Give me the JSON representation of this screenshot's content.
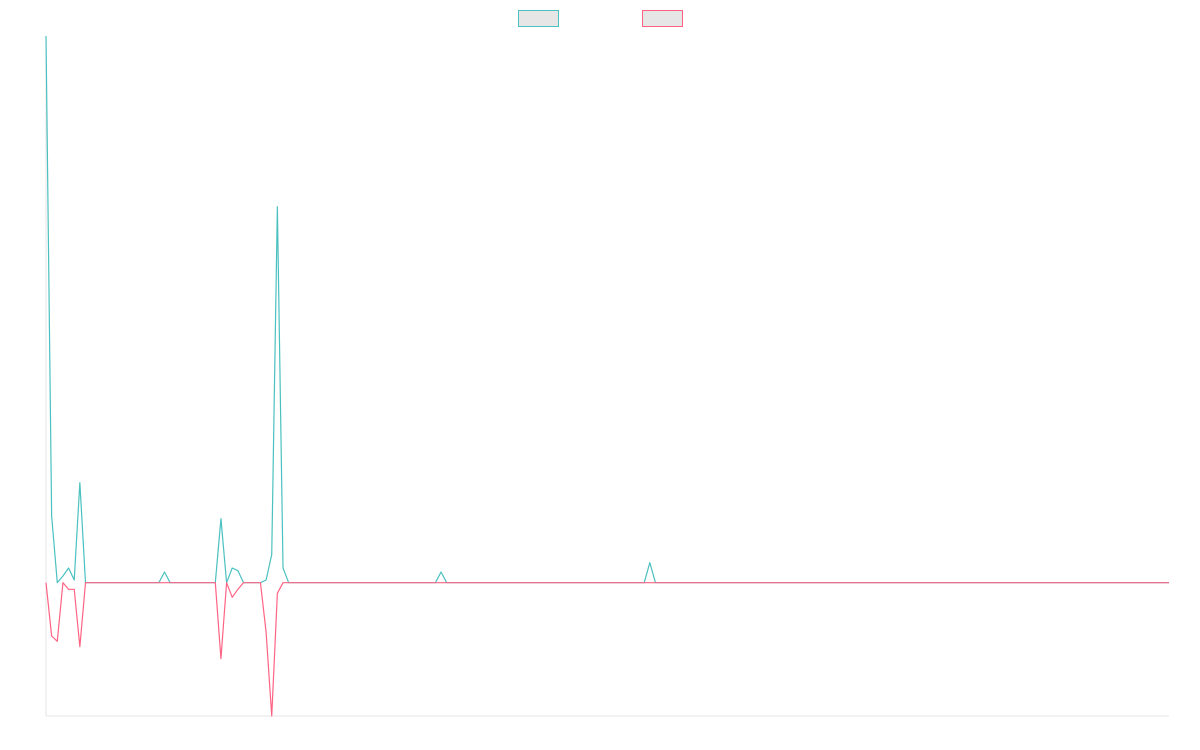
{
  "chart_data": {
    "type": "line",
    "title": "",
    "xlabel": "",
    "ylabel": "",
    "grid": false,
    "legend_placement": "top-center",
    "x_count": 200,
    "y_range": [
      -100,
      410
    ],
    "series": [
      {
        "color": "#4bc0c0",
        "fill": "#e6e6e6",
        "points": [
          [
            0,
            410
          ],
          [
            1,
            50
          ],
          [
            2,
            0
          ],
          [
            3,
            5
          ],
          [
            4,
            11
          ],
          [
            5,
            2
          ],
          [
            6,
            75
          ],
          [
            7,
            0
          ],
          [
            20,
            0
          ],
          [
            21,
            8
          ],
          [
            22,
            0
          ],
          [
            30,
            0
          ],
          [
            31,
            48
          ],
          [
            32,
            0
          ],
          [
            33,
            11
          ],
          [
            34,
            9
          ],
          [
            35,
            0
          ],
          [
            38,
            0
          ],
          [
            39,
            2
          ],
          [
            40,
            21
          ],
          [
            41,
            282
          ],
          [
            42,
            11
          ],
          [
            43,
            0
          ],
          [
            69,
            0
          ],
          [
            70,
            8
          ],
          [
            71,
            0
          ],
          [
            106,
            0
          ],
          [
            107,
            15
          ],
          [
            108,
            0
          ],
          [
            199,
            0
          ]
        ]
      },
      {
        "color": "#ff6384",
        "fill": "#e6e6e6",
        "points": [
          [
            0,
            0
          ],
          [
            1,
            -40
          ],
          [
            2,
            -44
          ],
          [
            3,
            0
          ],
          [
            4,
            -5
          ],
          [
            5,
            -5
          ],
          [
            6,
            -48
          ],
          [
            7,
            0
          ],
          [
            30,
            0
          ],
          [
            31,
            -57
          ],
          [
            32,
            0
          ],
          [
            33,
            -11
          ],
          [
            34,
            -5
          ],
          [
            35,
            0
          ],
          [
            38,
            0
          ],
          [
            39,
            -37
          ],
          [
            40,
            -100
          ],
          [
            41,
            -8
          ],
          [
            42,
            0
          ],
          [
            199,
            0
          ]
        ]
      }
    ]
  }
}
